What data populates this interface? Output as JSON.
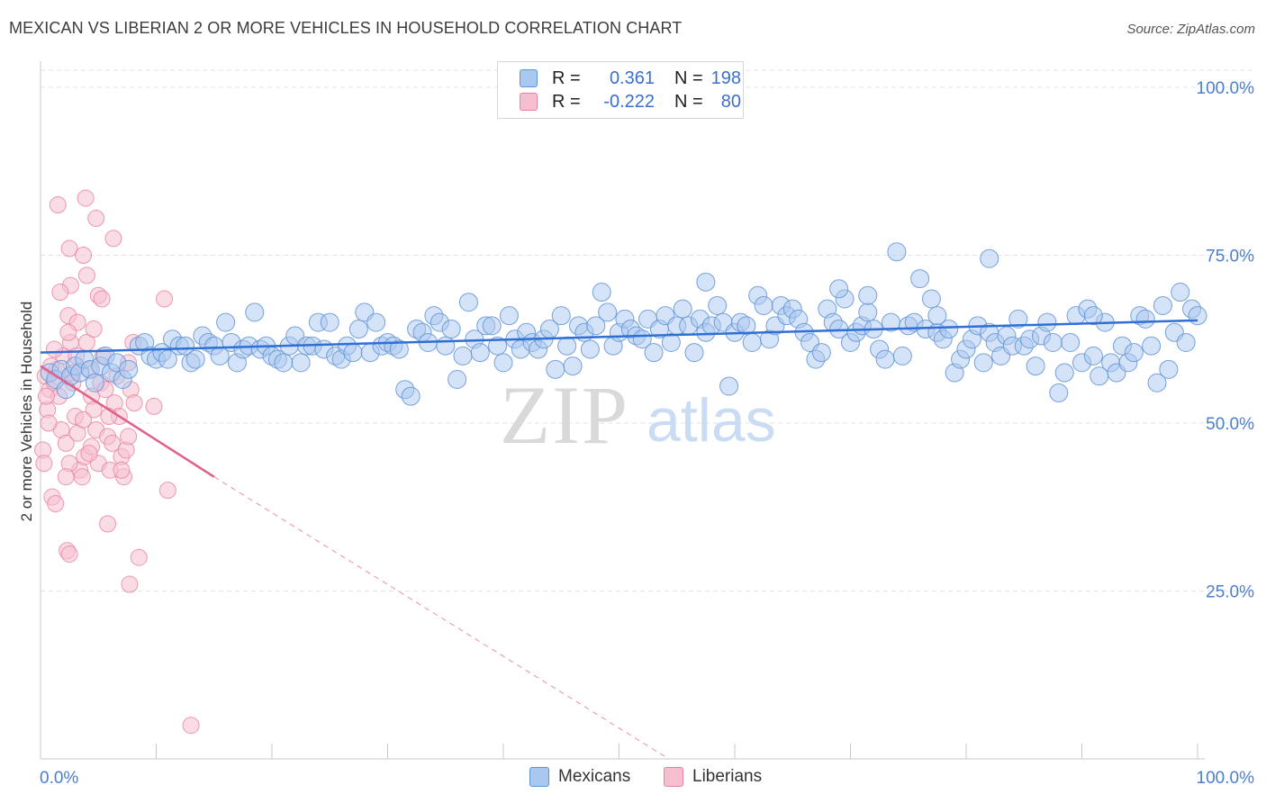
{
  "title": "MEXICAN VS LIBERIAN 2 OR MORE VEHICLES IN HOUSEHOLD CORRELATION CHART",
  "source": "Source: ZipAtlas.com",
  "watermark": {
    "zip": "ZIP",
    "atlas": "atlas"
  },
  "colors": {
    "blue_fill": "#a9c8f0",
    "blue_stroke": "#5f93d6",
    "blue_line": "#2f6fd6",
    "pink_fill": "#f6bfd0",
    "pink_stroke": "#e8819f",
    "pink_line": "#e0608a",
    "axis_label": "#4a7fd0",
    "grid": "#e3e3e3"
  },
  "legend": {
    "rows": [
      {
        "label": "R =",
        "r": "0.361",
        "n_label": "N =",
        "n": "198",
        "swatch_color": "#a9c8f0",
        "swatch_border": "#5f93d6"
      },
      {
        "label": "R =",
        "r": "-0.222",
        "n_label": "N =",
        "n": "80",
        "swatch_color": "#f6bfd0",
        "swatch_border": "#e8819f"
      }
    ]
  },
  "bottom_legend": [
    {
      "label": "Mexicans",
      "color": "#a9c8f0",
      "border": "#5f93d6"
    },
    {
      "label": "Liberians",
      "color": "#f6bfd0",
      "border": "#e8819f"
    }
  ],
  "chart_data": {
    "type": "scatter",
    "title": "MEXICAN VS LIBERIAN 2 OR MORE VEHICLES IN HOUSEHOLD CORRELATION CHART",
    "xlabel": "",
    "ylabel": "2 or more Vehicles in Household",
    "xlim": [
      0,
      100
    ],
    "ylim": [
      0,
      100
    ],
    "x_tick_labels": [
      "0.0%",
      "100.0%"
    ],
    "y_tick_labels": [
      "100.0%",
      "75.0%",
      "50.0%",
      "25.0%"
    ],
    "y_ticks": [
      100,
      75,
      50,
      25
    ],
    "grid": true,
    "legend_position": "top-center",
    "series": [
      {
        "name": "Mexicans",
        "R": 0.361,
        "N": 198,
        "trend": {
          "x": [
            0,
            100
          ],
          "y": [
            60.5,
            65.3
          ]
        },
        "points": [
          [
            0.8,
            57.5
          ],
          [
            1.3,
            56.5
          ],
          [
            1.8,
            58.0
          ],
          [
            2.2,
            55.0
          ],
          [
            2.6,
            57.0
          ],
          [
            3.0,
            58.5
          ],
          [
            3.4,
            57.5
          ],
          [
            3.8,
            59.5
          ],
          [
            4.3,
            58.0
          ],
          [
            4.7,
            56.0
          ],
          [
            5.2,
            58.5
          ],
          [
            5.6,
            60.0
          ],
          [
            6.1,
            57.5
          ],
          [
            6.6,
            59.0
          ],
          [
            7.1,
            56.5
          ],
          [
            7.6,
            58.0
          ],
          [
            8.5,
            61.5
          ],
          [
            9.0,
            62.0
          ],
          [
            9.5,
            60.0
          ],
          [
            10.0,
            59.5
          ],
          [
            10.5,
            60.5
          ],
          [
            11.0,
            59.5
          ],
          [
            11.4,
            62.5
          ],
          [
            12.0,
            61.5
          ],
          [
            12.5,
            61.5
          ],
          [
            13.0,
            59.0
          ],
          [
            13.4,
            59.5
          ],
          [
            14.0,
            63.0
          ],
          [
            14.5,
            62.0
          ],
          [
            15.0,
            61.5
          ],
          [
            15.5,
            60.0
          ],
          [
            16.0,
            65.0
          ],
          [
            16.5,
            62.0
          ],
          [
            17.0,
            59.0
          ],
          [
            17.5,
            61.0
          ],
          [
            18.0,
            61.5
          ],
          [
            18.5,
            66.5
          ],
          [
            19.0,
            61.0
          ],
          [
            19.5,
            61.5
          ],
          [
            20.0,
            60.0
          ],
          [
            20.5,
            59.5
          ],
          [
            21.0,
            59.0
          ],
          [
            21.5,
            61.5
          ],
          [
            22.0,
            63.0
          ],
          [
            22.5,
            59.0
          ],
          [
            23.0,
            61.5
          ],
          [
            23.5,
            61.5
          ],
          [
            24.0,
            65.0
          ],
          [
            24.5,
            61.0
          ],
          [
            25.0,
            65.0
          ],
          [
            25.5,
            60.0
          ],
          [
            26.0,
            59.5
          ],
          [
            26.5,
            61.5
          ],
          [
            27.0,
            60.5
          ],
          [
            27.5,
            64.0
          ],
          [
            28.0,
            66.5
          ],
          [
            28.5,
            60.5
          ],
          [
            29.0,
            65.0
          ],
          [
            29.5,
            61.5
          ],
          [
            30.0,
            62.0
          ],
          [
            30.5,
            61.5
          ],
          [
            31.0,
            61.0
          ],
          [
            31.5,
            55.0
          ],
          [
            32.0,
            54.0
          ],
          [
            32.5,
            64.0
          ],
          [
            33.0,
            63.5
          ],
          [
            33.5,
            62.0
          ],
          [
            34.0,
            66.0
          ],
          [
            34.5,
            65.0
          ],
          [
            35.0,
            61.5
          ],
          [
            35.5,
            64.0
          ],
          [
            36.0,
            56.5
          ],
          [
            36.5,
            60.0
          ],
          [
            37.0,
            68.0
          ],
          [
            37.5,
            62.5
          ],
          [
            38.0,
            60.5
          ],
          [
            38.5,
            64.5
          ],
          [
            39.0,
            64.5
          ],
          [
            39.5,
            61.5
          ],
          [
            40.0,
            59.0
          ],
          [
            40.5,
            66.0
          ],
          [
            41.0,
            62.5
          ],
          [
            41.5,
            61.0
          ],
          [
            42.0,
            63.5
          ],
          [
            42.5,
            62.0
          ],
          [
            43.0,
            61.0
          ],
          [
            43.5,
            62.5
          ],
          [
            44.0,
            64.0
          ],
          [
            44.5,
            58.0
          ],
          [
            45.0,
            66.0
          ],
          [
            45.5,
            61.5
          ],
          [
            46.0,
            58.5
          ],
          [
            46.5,
            64.5
          ],
          [
            47.0,
            63.5
          ],
          [
            47.5,
            61.0
          ],
          [
            48.0,
            64.5
          ],
          [
            48.5,
            69.5
          ],
          [
            49.0,
            66.5
          ],
          [
            49.5,
            61.5
          ],
          [
            50.0,
            63.5
          ],
          [
            50.5,
            65.5
          ],
          [
            51.0,
            64.0
          ],
          [
            51.5,
            63.0
          ],
          [
            52.0,
            62.5
          ],
          [
            52.5,
            65.5
          ],
          [
            53.0,
            60.5
          ],
          [
            53.5,
            64.0
          ],
          [
            54.0,
            66.0
          ],
          [
            54.5,
            62.0
          ],
          [
            55.0,
            64.5
          ],
          [
            55.5,
            67.0
          ],
          [
            56.0,
            64.5
          ],
          [
            56.5,
            60.5
          ],
          [
            57.0,
            65.5
          ],
          [
            57.5,
            63.5
          ],
          [
            58.0,
            64.5
          ],
          [
            58.5,
            67.5
          ],
          [
            59.0,
            65.0
          ],
          [
            59.5,
            55.5
          ],
          [
            60.0,
            63.5
          ],
          [
            60.5,
            65.0
          ],
          [
            61.0,
            64.5
          ],
          [
            61.5,
            62.0
          ],
          [
            62.0,
            69.0
          ],
          [
            62.5,
            67.5
          ],
          [
            63.0,
            62.5
          ],
          [
            63.5,
            64.5
          ],
          [
            64.0,
            67.5
          ],
          [
            64.5,
            66.0
          ],
          [
            65.0,
            67.0
          ],
          [
            65.5,
            65.5
          ],
          [
            66.0,
            63.5
          ],
          [
            66.5,
            62.0
          ],
          [
            67.0,
            59.5
          ],
          [
            67.5,
            60.5
          ],
          [
            68.0,
            67.0
          ],
          [
            68.5,
            65.0
          ],
          [
            69.0,
            64.0
          ],
          [
            69.5,
            68.5
          ],
          [
            70.0,
            62.0
          ],
          [
            70.5,
            63.5
          ],
          [
            71.0,
            64.5
          ],
          [
            71.5,
            66.5
          ],
          [
            72.0,
            64.0
          ],
          [
            72.5,
            61.0
          ],
          [
            73.0,
            59.5
          ],
          [
            73.5,
            65.0
          ],
          [
            74.0,
            75.5
          ],
          [
            74.5,
            60.0
          ],
          [
            75.0,
            64.5
          ],
          [
            75.5,
            65.0
          ],
          [
            76.0,
            71.5
          ],
          [
            76.5,
            64.0
          ],
          [
            77.0,
            68.5
          ],
          [
            77.5,
            63.5
          ],
          [
            78.0,
            62.5
          ],
          [
            78.5,
            64.0
          ],
          [
            79.0,
            57.5
          ],
          [
            79.5,
            59.5
          ],
          [
            80.0,
            61.0
          ],
          [
            80.5,
            62.5
          ],
          [
            81.0,
            64.5
          ],
          [
            81.5,
            59.0
          ],
          [
            82.0,
            63.5
          ],
          [
            82.5,
            62.0
          ],
          [
            83.0,
            60.0
          ],
          [
            83.5,
            63.0
          ],
          [
            84.0,
            61.5
          ],
          [
            84.5,
            65.5
          ],
          [
            85.0,
            61.5
          ],
          [
            85.5,
            62.5
          ],
          [
            86.0,
            58.5
          ],
          [
            86.5,
            63.0
          ],
          [
            87.0,
            65.0
          ],
          [
            87.5,
            62.0
          ],
          [
            88.0,
            54.5
          ],
          [
            88.5,
            57.5
          ],
          [
            89.0,
            62.0
          ],
          [
            89.5,
            66.0
          ],
          [
            90.0,
            59.0
          ],
          [
            90.5,
            67.0
          ],
          [
            91.0,
            60.0
          ],
          [
            91.5,
            57.0
          ],
          [
            92.0,
            65.0
          ],
          [
            92.5,
            59.0
          ],
          [
            93.0,
            57.5
          ],
          [
            93.5,
            61.5
          ],
          [
            94.0,
            59.0
          ],
          [
            94.5,
            60.5
          ],
          [
            95.0,
            66.0
          ],
          [
            95.5,
            65.5
          ],
          [
            96.0,
            61.5
          ],
          [
            96.5,
            56.0
          ],
          [
            97.0,
            67.5
          ],
          [
            97.5,
            58.0
          ],
          [
            98.0,
            63.5
          ],
          [
            98.5,
            69.5
          ],
          [
            99.0,
            62.0
          ],
          [
            99.5,
            67.0
          ],
          [
            100.0,
            66.0
          ],
          [
            71.5,
            69.0
          ],
          [
            82.0,
            74.5
          ],
          [
            91.0,
            66.0
          ],
          [
            57.5,
            71.0
          ],
          [
            69.0,
            70.0
          ],
          [
            77.5,
            66.0
          ]
        ]
      },
      {
        "name": "Liberians",
        "R": -0.222,
        "N": 80,
        "trend": {
          "x": [
            0,
            15.0
          ],
          "y": [
            58.5,
            42.0
          ]
        },
        "trend_dashed": {
          "x": [
            15.0,
            54.3
          ],
          "y": [
            42.0,
            0.0
          ]
        },
        "points": [
          [
            0.2,
            46.0
          ],
          [
            0.4,
            57.0
          ],
          [
            0.6,
            52.0
          ],
          [
            0.8,
            55.0
          ],
          [
            1.0,
            39.0
          ],
          [
            1.2,
            56.0
          ],
          [
            1.4,
            58.0
          ],
          [
            1.6,
            54.0
          ],
          [
            1.8,
            49.0
          ],
          [
            2.0,
            60.0
          ],
          [
            2.2,
            47.0
          ],
          [
            2.4,
            66.0
          ],
          [
            2.6,
            62.0
          ],
          [
            2.8,
            57.5
          ],
          [
            3.0,
            51.0
          ],
          [
            3.2,
            48.5
          ],
          [
            3.4,
            43.0
          ],
          [
            3.6,
            42.0
          ],
          [
            3.8,
            45.0
          ],
          [
            4.0,
            62.0
          ],
          [
            4.2,
            58.0
          ],
          [
            4.4,
            54.0
          ],
          [
            4.6,
            52.0
          ],
          [
            4.8,
            49.0
          ],
          [
            5.0,
            44.0
          ],
          [
            5.2,
            56.0
          ],
          [
            5.4,
            60.0
          ],
          [
            5.6,
            55.0
          ],
          [
            5.8,
            48.0
          ],
          [
            6.0,
            43.0
          ],
          [
            6.2,
            47.0
          ],
          [
            6.4,
            53.0
          ],
          [
            6.6,
            57.0
          ],
          [
            6.8,
            51.0
          ],
          [
            7.0,
            45.0
          ],
          [
            7.2,
            42.0
          ],
          [
            7.4,
            46.0
          ],
          [
            7.6,
            59.0
          ],
          [
            7.8,
            55.0
          ],
          [
            8.0,
            62.0
          ],
          [
            1.5,
            82.5
          ],
          [
            3.9,
            83.5
          ],
          [
            4.8,
            80.5
          ],
          [
            6.3,
            77.5
          ],
          [
            2.5,
            76.0
          ],
          [
            3.7,
            75.0
          ],
          [
            4.0,
            72.0
          ],
          [
            2.6,
            70.5
          ],
          [
            1.7,
            69.5
          ],
          [
            5.0,
            69.0
          ],
          [
            5.3,
            68.5
          ],
          [
            10.7,
            68.5
          ],
          [
            3.2,
            65.0
          ],
          [
            4.6,
            64.0
          ],
          [
            2.4,
            63.5
          ],
          [
            1.2,
            61.0
          ],
          [
            3.1,
            60.0
          ],
          [
            0.9,
            58.5
          ],
          [
            2.8,
            56.0
          ],
          [
            0.5,
            54.0
          ],
          [
            8.1,
            53.0
          ],
          [
            9.8,
            52.5
          ],
          [
            5.9,
            51.0
          ],
          [
            3.7,
            50.5
          ],
          [
            0.7,
            50.0
          ],
          [
            7.6,
            48.0
          ],
          [
            4.4,
            46.5
          ],
          [
            4.2,
            45.5
          ],
          [
            2.5,
            44.0
          ],
          [
            7.0,
            43.0
          ],
          [
            2.2,
            42.0
          ],
          [
            11.0,
            40.0
          ],
          [
            1.3,
            38.0
          ],
          [
            5.8,
            35.0
          ],
          [
            2.3,
            31.0
          ],
          [
            8.5,
            30.0
          ],
          [
            2.5,
            30.5
          ],
          [
            7.7,
            26.0
          ],
          [
            13.0,
            5.0
          ],
          [
            0.3,
            44.0
          ]
        ]
      }
    ]
  }
}
